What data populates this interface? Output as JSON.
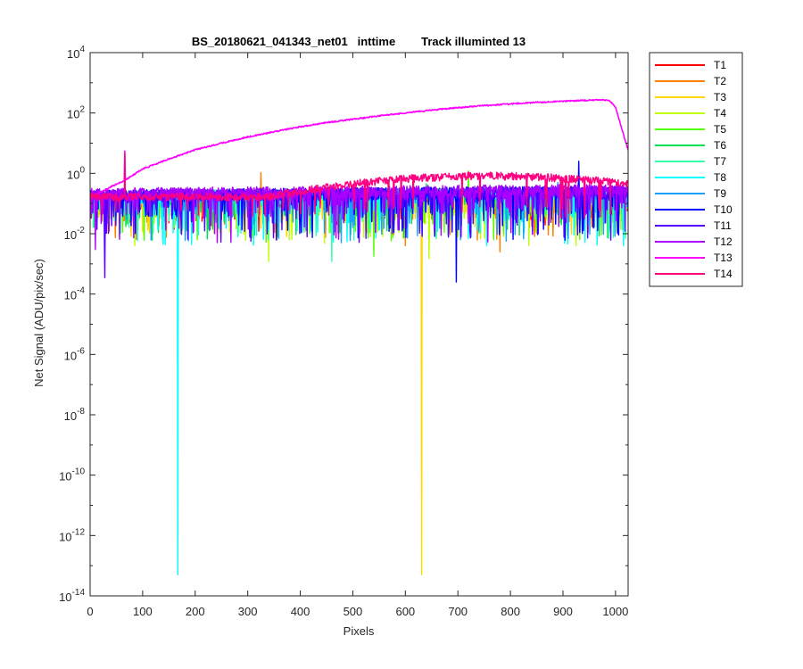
{
  "chart_data": {
    "type": "line",
    "title": "BS_20180621_041343_net01   inttime        Track illuminted 13",
    "xlabel": "Pixels",
    "ylabel": "Net Signal (ADU/pix/sec)",
    "xlim": [
      0,
      1024
    ],
    "ylim": [
      1e-14,
      10000
    ],
    "yscale": "log",
    "xticks": [
      0,
      100,
      200,
      300,
      400,
      500,
      600,
      700,
      800,
      900,
      1000
    ],
    "yticks": [
      {
        "value": 1e-14,
        "base": "10",
        "exp": "-14"
      },
      {
        "value": 1e-12,
        "base": "10",
        "exp": "-12"
      },
      {
        "value": 1e-10,
        "base": "10",
        "exp": "-10"
      },
      {
        "value": 1e-08,
        "base": "10",
        "exp": "-8"
      },
      {
        "value": 1e-06,
        "base": "10",
        "exp": "-6"
      },
      {
        "value": 0.0001,
        "base": "10",
        "exp": "-4"
      },
      {
        "value": 0.01,
        "base": "10",
        "exp": "-2"
      },
      {
        "value": 1,
        "base": "10",
        "exp": "0"
      },
      {
        "value": 100,
        "base": "10",
        "exp": "2"
      },
      {
        "value": 10000,
        "base": "10",
        "exp": "4"
      }
    ],
    "legend_position": "outside-top-right",
    "grid": false,
    "series": [
      {
        "name": "T1",
        "color": "#ff0000",
        "level": 0.14,
        "floor": 0.012,
        "spikes": [
          {
            "x": 540,
            "y": 0.012
          }
        ]
      },
      {
        "name": "T2",
        "color": "#ff7f00",
        "level": 0.15,
        "floor": 0.006,
        "spikes": [
          {
            "x": 325,
            "y": 1.05
          },
          {
            "x": 780,
            "y": 0.0025
          },
          {
            "x": 600,
            "y": 0.004
          }
        ]
      },
      {
        "name": "T3",
        "color": "#ffd700",
        "level": 0.16,
        "floor": 0.008,
        "spikes": [
          {
            "x": 631,
            "y": 5e-14
          }
        ]
      },
      {
        "name": "T4",
        "color": "#bfff00",
        "level": 0.17,
        "floor": 0.004,
        "spikes": [
          {
            "x": 340,
            "y": 0.0012
          },
          {
            "x": 645,
            "y": 0.0015
          }
        ]
      },
      {
        "name": "T5",
        "color": "#55ff00",
        "level": 0.18,
        "floor": 0.005,
        "spikes": [
          {
            "x": 720,
            "y": 1.2
          },
          {
            "x": 540,
            "y": 0.0018
          }
        ]
      },
      {
        "name": "T6",
        "color": "#00e050",
        "level": 0.2,
        "floor": 0.006,
        "spikes": [
          {
            "x": 640,
            "y": 0.45
          }
        ]
      },
      {
        "name": "T7",
        "color": "#33ffaa",
        "level": 0.2,
        "floor": 0.006,
        "spikes": [
          {
            "x": 460,
            "y": 0.0012
          }
        ]
      },
      {
        "name": "T8",
        "color": "#00ffff",
        "level": 0.18,
        "floor": 0.004,
        "spikes": [
          {
            "x": 167,
            "y": 5e-14
          }
        ]
      },
      {
        "name": "T9",
        "color": "#1a9fff",
        "level": 0.2,
        "floor": 0.005,
        "spikes": [
          {
            "x": 890,
            "y": 0.5
          }
        ]
      },
      {
        "name": "T10",
        "color": "#0000ff",
        "level": 0.22,
        "floor": 0.006,
        "spikes": [
          {
            "x": 697,
            "y": 0.00025
          },
          {
            "x": 930,
            "y": 2.5
          }
        ]
      },
      {
        "name": "T11",
        "color": "#5500ff",
        "level": 0.22,
        "floor": 0.005,
        "spikes": [
          {
            "x": 28,
            "y": 0.00035
          }
        ]
      },
      {
        "name": "T12",
        "color": "#aa00ff",
        "level": 0.25,
        "floor": 0.005,
        "spikes": [
          {
            "x": 10,
            "y": 0.003
          }
        ]
      },
      {
        "name": "T13",
        "color": "#ff00ff",
        "profile": "illuminated",
        "points": [
          [
            0,
            0.15
          ],
          [
            30,
            0.3
          ],
          [
            67,
            0.6
          ],
          [
            100,
            1.4
          ],
          [
            150,
            3
          ],
          [
            200,
            6
          ],
          [
            250,
            10
          ],
          [
            300,
            16
          ],
          [
            350,
            24
          ],
          [
            400,
            35
          ],
          [
            450,
            48
          ],
          [
            500,
            62
          ],
          [
            550,
            80
          ],
          [
            600,
            100
          ],
          [
            650,
            125
          ],
          [
            700,
            150
          ],
          [
            750,
            175
          ],
          [
            800,
            200
          ],
          [
            850,
            225
          ],
          [
            900,
            245
          ],
          [
            950,
            265
          ],
          [
            975,
            275
          ],
          [
            990,
            250
          ],
          [
            1000,
            150
          ],
          [
            1010,
            40
          ],
          [
            1020,
            10
          ],
          [
            1024,
            6
          ]
        ],
        "spikes": [
          {
            "x": 66,
            "y": 5.5
          }
        ]
      },
      {
        "name": "T14",
        "color": "#ff0080",
        "profile": "hump",
        "level": 0.2,
        "floor": 0.03,
        "peak": {
          "x": 760,
          "y": 1.0
        },
        "spikes": [
          {
            "x": 66,
            "y": 4.5
          }
        ]
      }
    ]
  }
}
